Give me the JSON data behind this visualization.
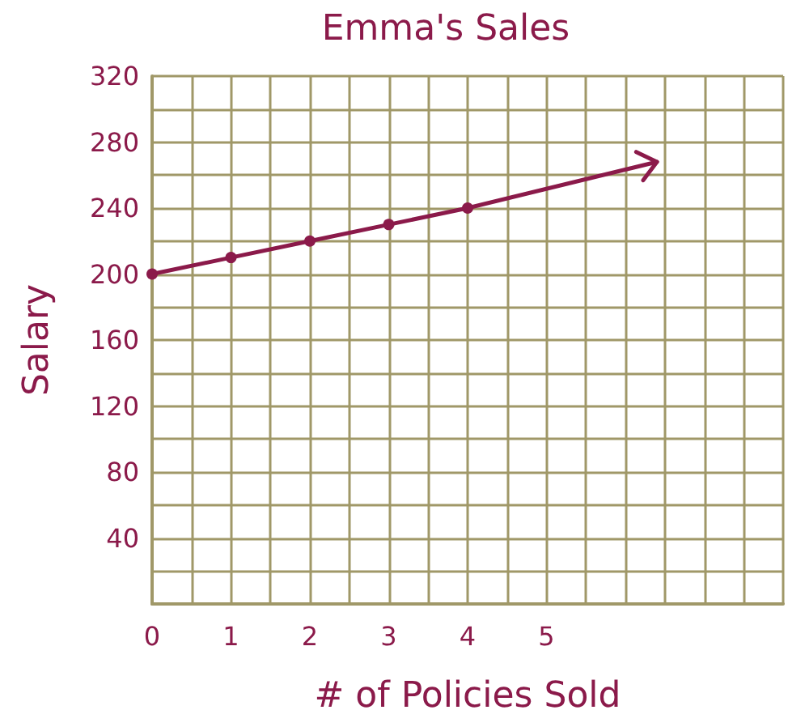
{
  "chart_data": {
    "type": "line",
    "title": "Emma's Sales",
    "xlabel": "# of Policies Sold",
    "ylabel": "Salary",
    "series": [
      {
        "x": [
          0,
          1,
          2,
          3,
          4
        ],
        "values": [
          200,
          210,
          220,
          230,
          240
        ],
        "color": "#8b1a4a",
        "marker": "circle"
      },
      {
        "x": [
          4,
          6.4
        ],
        "values": [
          240,
          268
        ],
        "color": "#8b1a4a",
        "marker": "none"
      }
    ],
    "xlim": [
      0,
      8
    ],
    "xticks": [
      0,
      {
        "value": 0.5,
        "label": null
      },
      1,
      {
        "value": 1.5,
        "label": null
      },
      2,
      {
        "value": 2.5,
        "label": null
      },
      3,
      {
        "value": 3.5,
        "label": null
      },
      4,
      {
        "value": 4.5,
        "label": null
      },
      5,
      {
        "value": 5.5,
        "label": null
      },
      {
        "value": 6,
        "label": null
      },
      {
        "value": 6.5,
        "label": null
      },
      {
        "value": 7,
        "label": null
      },
      {
        "value": 7.5,
        "label": null
      },
      {
        "value": 8,
        "label": null
      }
    ],
    "ylim": [
      0,
      320
    ],
    "yticks": [
      {
        "value": 0,
        "label": null
      },
      {
        "value": 20,
        "label": null
      },
      40,
      {
        "value": 60,
        "label": null
      },
      80,
      {
        "value": 100,
        "label": null
      },
      120,
      {
        "value": 140,
        "label": null
      },
      160,
      {
        "value": 180,
        "label": null
      },
      200,
      {
        "value": 220,
        "label": null
      },
      240,
      {
        "value": 260,
        "label": null
      },
      280,
      {
        "value": 300,
        "label": null
      },
      320
    ],
    "grid": true
  }
}
